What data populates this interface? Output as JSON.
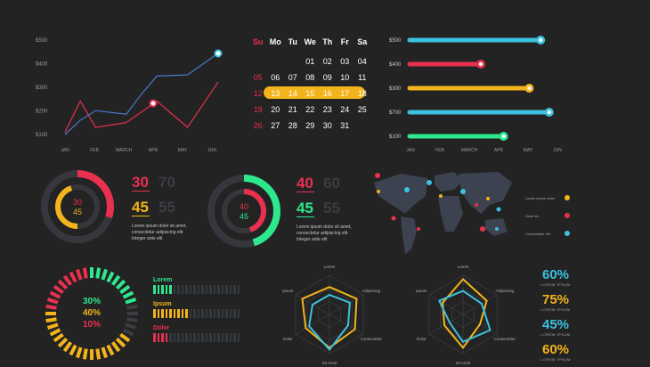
{
  "colors": {
    "bg": "#232323",
    "panel": "#2e2f33",
    "red": "#e8304f",
    "yellow": "#f3b41b",
    "teal": "#3cc1e0",
    "green": "#2ee88e",
    "gray": "#3a3d42"
  },
  "line_chart": {
    "y_ticks": [
      "$500",
      "$400",
      "$300",
      "$200",
      "$100"
    ],
    "x_ticks": [
      "JAN",
      "FEB",
      "MARCH",
      "APR",
      "MAY",
      "JUN"
    ],
    "series_blue": [
      [
        0,
        100
      ],
      [
        0.5,
        160
      ],
      [
        1,
        200
      ],
      [
        2,
        185
      ],
      [
        2.5,
        270
      ],
      [
        3,
        345
      ],
      [
        4,
        350
      ],
      [
        5,
        440
      ]
    ],
    "series_red": [
      [
        0,
        110
      ],
      [
        0.5,
        240
      ],
      [
        1,
        130
      ],
      [
        2,
        150
      ],
      [
        3,
        240
      ],
      [
        4,
        130
      ],
      [
        5,
        320
      ]
    ]
  },
  "calendar": {
    "headers": [
      "Su",
      "Mo",
      "Tu",
      "We",
      "Th",
      "Fr",
      "Sa"
    ],
    "rows": [
      [
        "",
        "",
        "",
        "01",
        "02",
        "03",
        "04"
      ],
      [
        "05",
        "06",
        "07",
        "08",
        "09",
        "10",
        "11"
      ],
      [
        "12",
        "13",
        "14",
        "15",
        "16",
        "17",
        "18"
      ],
      [
        "19",
        "20",
        "21",
        "22",
        "23",
        "24",
        "25"
      ],
      [
        "26",
        "27",
        "28",
        "29",
        "30",
        "31",
        ""
      ]
    ]
  },
  "progress_bars": {
    "labels": [
      "$500",
      "$400",
      "$300",
      "$700",
      "$100"
    ],
    "fractions": [
      0.92,
      0.5,
      0.84,
      0.98,
      0.66
    ],
    "colors": [
      "#3cc1e0",
      "#e8304f",
      "#f3b41b",
      "#3cc1e0",
      "#2ee88e"
    ],
    "x_ticks": [
      "JAN",
      "FEB",
      "MARCH",
      "APR",
      "MAY",
      "JUN"
    ]
  },
  "donut1": {
    "a": "30",
    "b": "45",
    "big_a": "30",
    "big_a_ghost": "70",
    "big_b": "45",
    "big_b_ghost": "55",
    "text": [
      "Lorem ipsum dolor sit amet,",
      "consectetur adipiscing elit",
      "Integer ante elit"
    ]
  },
  "donut2": {
    "a": "40",
    "b": "45",
    "big_a": "40",
    "big_a_ghost": "60",
    "big_b": "45",
    "big_b_ghost": "55",
    "text": [
      "Lorem ipsum dolor sit amet,",
      "consectetur adipiscing elit",
      "Integer ante elit"
    ]
  },
  "map_legend": [
    "Lorem ipsum dolor",
    "Dolor sit",
    "Consectetur elit"
  ],
  "gauge": {
    "values": [
      "30%",
      "40%",
      "10%"
    ]
  },
  "hbars": [
    {
      "label": "Lorem",
      "filled": 5,
      "color": "#2ee88e"
    },
    {
      "label": "Ipsum",
      "filled": 9,
      "color": "#f3b41b"
    },
    {
      "label": "Dolor",
      "filled": 4,
      "color": "#e8304f"
    }
  ],
  "radar1": {
    "labels": [
      "Lorem",
      "Adipiscing",
      "Consectetur",
      "Sit Amet",
      "Dolor",
      "Ipsum"
    ]
  },
  "radar2": {
    "labels": [
      "Lorem",
      "Adipiscing",
      "Consectetur",
      "Sit Amet",
      "Dolor",
      "Ipsum"
    ]
  },
  "percents": [
    {
      "value": "60%",
      "sub": "LOREM IPSUM",
      "color": "#3cc1e0"
    },
    {
      "value": "75%",
      "sub": "LOREM IPSUM",
      "color": "#f3b41b"
    },
    {
      "value": "45%",
      "sub": "LOREM IPSUM",
      "color": "#3cc1e0"
    },
    {
      "value": "60%",
      "sub": "LOREM IPSUM",
      "color": "#f3b41b"
    }
  ]
}
